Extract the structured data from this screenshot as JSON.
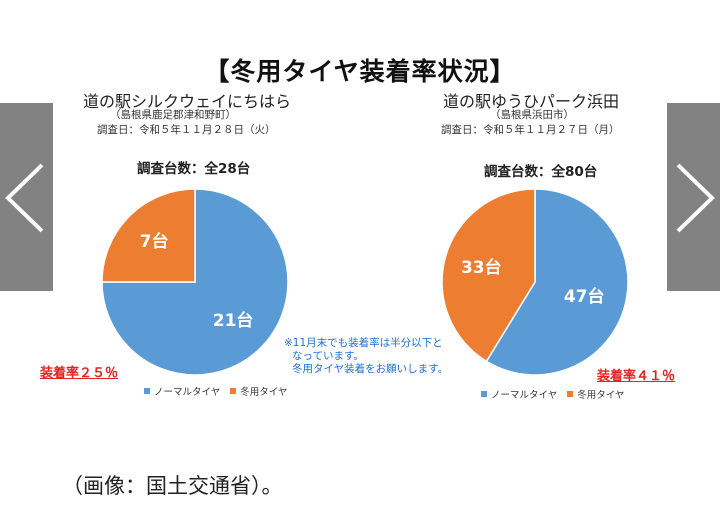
{
  "title": "【冬用タイヤ装着率状況】",
  "colors": {
    "normal": "#5b9bd5",
    "winter": "#ed7d31",
    "rate": "#e0241f",
    "note": "#1f6fd1"
  },
  "legend": {
    "normal_label": "ノーマルタイヤ",
    "winter_label": "冬用タイヤ"
  },
  "left": {
    "name": "道の駅シルクウェイにちはら",
    "address": "（島根県鹿足郡津和野町）",
    "survey_date": "調査日：令和５年１１月２８日（火）",
    "count_label": "調査台数：全28台",
    "rate_label": "装着率２５％"
  },
  "right": {
    "name": "道の駅ゆうひパーク浜田",
    "address": "（島根県浜田市）",
    "survey_date": "調査日：令和５年１１月２７日（月）",
    "count_label": "調査台数：全80台",
    "rate_label": "装着率４１％"
  },
  "note_lines": [
    "※11月末でも装着率は半分以下と",
    "なっています。",
    "冬用タイヤ装着をお願いします。"
  ],
  "caption": "（画像：国土交通省）。",
  "nav": {
    "prev_icon": "chevron-left-icon",
    "next_icon": "chevron-right-icon"
  },
  "chart_data": [
    {
      "type": "pie",
      "title": "調査台数：全28台",
      "categories": [
        "ノーマルタイヤ",
        "冬用タイヤ"
      ],
      "values": [
        21,
        7
      ],
      "data_labels": [
        "21台",
        "7台"
      ],
      "legend": "bottom"
    },
    {
      "type": "pie",
      "title": "調査台数：全80台",
      "categories": [
        "ノーマルタイヤ",
        "冬用タイヤ"
      ],
      "values": [
        47,
        33
      ],
      "data_labels": [
        "47台",
        "33台"
      ],
      "legend": "bottom"
    }
  ]
}
